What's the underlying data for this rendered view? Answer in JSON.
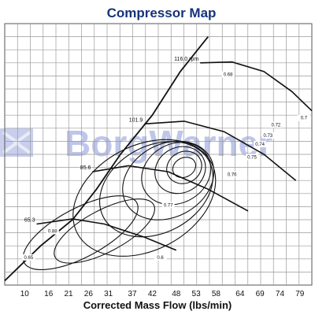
{
  "chart_data": {
    "type": "line",
    "title": "Compressor Map",
    "xlabel": "Corrected Mass Flow (lbs/min)",
    "ylabel": "",
    "x_ticks": [
      "10",
      "16",
      "21",
      "26",
      "31",
      "37",
      "42",
      "48",
      "53",
      "58",
      "64",
      "69",
      "74",
      "79"
    ],
    "xlim": [
      5,
      82
    ],
    "ylim": [
      1.0,
      4.0
    ],
    "grid": true,
    "watermark": "BorgWarner",
    "watermark_logo": "borgwarner-logo-icon",
    "surge_line": [
      [
        5,
        1.05
      ],
      [
        14,
        1.45
      ],
      [
        22,
        1.75
      ],
      [
        28,
        2.1
      ],
      [
        34,
        2.5
      ],
      [
        42,
        2.95
      ],
      [
        49,
        3.45
      ],
      [
        56,
        3.85
      ]
    ],
    "speed_lines": [
      {
        "label": "65.3",
        "points": [
          [
            13,
            1.7
          ],
          [
            22,
            1.76
          ],
          [
            30,
            1.7
          ],
          [
            40,
            1.55
          ],
          [
            48,
            1.4
          ]
        ]
      },
      {
        "label": "85.6",
        "points": [
          [
            27,
            2.3
          ],
          [
            36,
            2.37
          ],
          [
            46,
            2.3
          ],
          [
            56,
            2.1
          ],
          [
            66,
            1.85
          ]
        ]
      },
      {
        "label": "101.9",
        "points": [
          [
            40,
            2.85
          ],
          [
            50,
            2.88
          ],
          [
            60,
            2.76
          ],
          [
            70,
            2.5
          ],
          [
            78,
            2.2
          ]
        ]
      },
      {
        "label": "116.0 rpm",
        "points": [
          [
            54,
            3.55
          ],
          [
            62,
            3.56
          ],
          [
            70,
            3.45
          ],
          [
            77,
            3.22
          ],
          [
            82,
            3.0
          ]
        ]
      }
    ],
    "efficiency_islands": [
      {
        "label": "0.65",
        "cx": 24,
        "cy": 1.6,
        "rx": 16,
        "ry": 0.28
      },
      {
        "label": "0.68",
        "cx": 30,
        "cy": 1.62,
        "rx": 14,
        "ry": 0.24
      },
      {
        "label": "0.7",
        "cx": 40,
        "cy": 2.0,
        "rx": 19,
        "ry": 0.6
      },
      {
        "label": "0.72",
        "cx": 43,
        "cy": 2.1,
        "rx": 15,
        "ry": 0.5
      },
      {
        "label": "0.73",
        "cx": 46,
        "cy": 2.2,
        "rx": 12,
        "ry": 0.42
      },
      {
        "label": "0.74",
        "cx": 48,
        "cy": 2.28,
        "rx": 9,
        "ry": 0.34
      },
      {
        "label": "0.75",
        "cx": 49,
        "cy": 2.32,
        "rx": 6.5,
        "ry": 0.26
      },
      {
        "label": "0.76",
        "cx": 50,
        "cy": 2.35,
        "rx": 4.5,
        "ry": 0.18
      },
      {
        "label": "0.77",
        "cx": 50,
        "cy": 2.35,
        "rx": 3,
        "ry": 0.11
      }
    ],
    "annotations": [
      {
        "text": "0.68",
        "x": 61,
        "y": 3.4
      },
      {
        "text": "0.7",
        "x": 80,
        "y": 2.9
      },
      {
        "text": "0.72",
        "x": 73,
        "y": 2.82
      },
      {
        "text": "0.73",
        "x": 71,
        "y": 2.7
      },
      {
        "text": "0.74",
        "x": 69,
        "y": 2.6
      },
      {
        "text": "0.75",
        "x": 67,
        "y": 2.45
      },
      {
        "text": "0.76",
        "x": 62,
        "y": 2.25
      },
      {
        "text": "0.77",
        "x": 46,
        "y": 1.9
      },
      {
        "text": "0.88",
        "x": 17,
        "y": 1.6
      },
      {
        "text": "0.65",
        "x": 11,
        "y": 1.3
      },
      {
        "text": "0.6",
        "x": 44,
        "y": 1.3
      }
    ]
  }
}
